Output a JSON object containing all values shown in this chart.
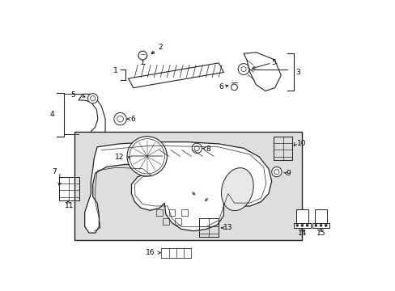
{
  "bg_color": "#ffffff",
  "line_color": "#222222",
  "box_fill": "#e0e0e0",
  "label_fontsize": 6.5,
  "figsize": [
    4.89,
    3.6
  ],
  "dpi": 100
}
